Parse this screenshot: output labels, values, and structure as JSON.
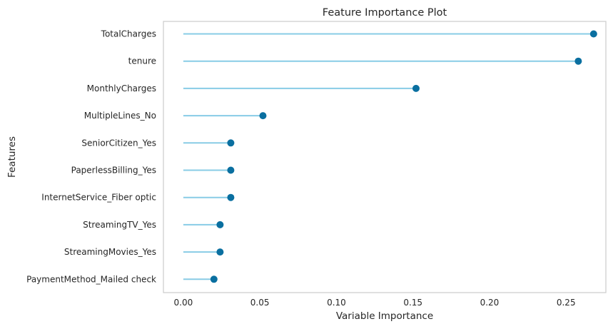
{
  "chart_data": {
    "type": "lollipop",
    "title": "Feature Importance Plot",
    "xlabel": "Variable Importance",
    "ylabel": "Features",
    "xlim": [
      -0.013,
      0.276
    ],
    "xticks": [
      0.0,
      0.05,
      0.1,
      0.15,
      0.2,
      0.25
    ],
    "xtick_labels": [
      "0.00",
      "0.05",
      "0.10",
      "0.15",
      "0.20",
      "0.25"
    ],
    "grid": false,
    "categories": [
      "TotalCharges",
      "tenure",
      "MonthlyCharges",
      "MultipleLines_No",
      "SeniorCitizen_Yes",
      "PaperlessBilling_Yes",
      "InternetService_Fiber optic",
      "StreamingTV_Yes",
      "StreamingMovies_Yes",
      "PaymentMethod_Mailed check"
    ],
    "values": [
      0.268,
      0.258,
      0.152,
      0.052,
      0.031,
      0.031,
      0.031,
      0.024,
      0.024,
      0.02
    ],
    "colors": {
      "stem": "#88cce6",
      "marker": "#0a6fa0",
      "spine": "#cccccc",
      "text": "#262626"
    }
  }
}
